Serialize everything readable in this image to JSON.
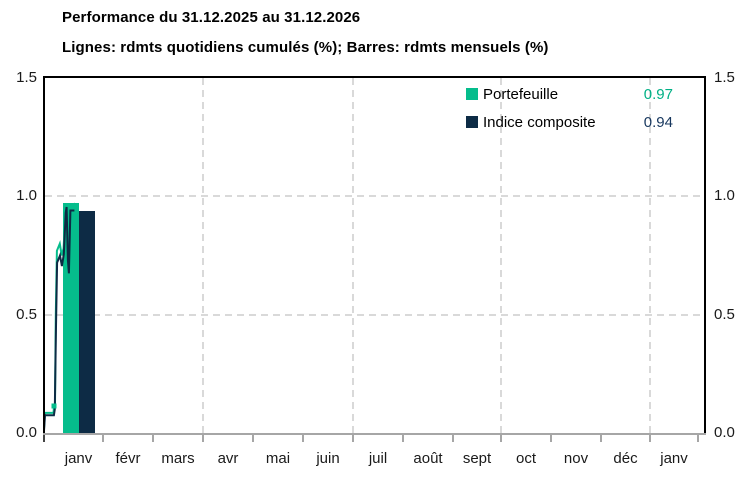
{
  "header": {
    "title": "Performance du 31.12.2025 au 31.12.2026",
    "subtitle": "Lignes: rdmts quotidiens cumulés (%); Barres: rdmts mensuels (%)"
  },
  "legend": {
    "items": [
      {
        "label": "Portefeuille",
        "value": "0.97",
        "color": "#05bd8c",
        "value_color": "#00b085"
      },
      {
        "label": "Indice composite",
        "value": "0.94",
        "color": "#0d2b45",
        "value_color": "#17375e"
      }
    ]
  },
  "colors": {
    "portfolio_green": "#05bd8c",
    "index_navy": "#0d2b45",
    "grid_gray": "#d9d9d9",
    "x_axis_gray": "#a6a6a6",
    "plot_border": "#000000"
  },
  "chart_data": {
    "type": "bar+line",
    "title": "Performance du 31.12.2025 au 31.12.2026",
    "subtitle": "Lignes: rdmts quotidiens cumulés (%); Barres: rdmts mensuels (%)",
    "categories": [
      "janv",
      "févr",
      "mars",
      "avr",
      "mai",
      "juin",
      "juil",
      "août",
      "sept",
      "oct",
      "nov",
      "déc",
      "janv"
    ],
    "bar_series": [
      {
        "name": "Portefeuille",
        "color": "#05bd8c",
        "values": [
          0.97,
          null,
          null,
          null,
          null,
          null,
          null,
          null,
          null,
          null,
          null,
          null,
          null
        ]
      },
      {
        "name": "Indice composite",
        "color": "#0d2b45",
        "values": [
          0.94,
          null,
          null,
          null,
          null,
          null,
          null,
          null,
          null,
          null,
          null,
          null,
          null
        ]
      }
    ],
    "line_series": [
      {
        "name": "Portefeuille",
        "color": "#05bd8c",
        "final_value": 0.97,
        "points_day_value": [
          [
            0,
            0.02
          ],
          [
            0.5,
            0.085
          ],
          [
            5,
            0.085
          ],
          [
            5.3,
            0.115
          ],
          [
            5.8,
            0.125
          ],
          [
            6.2,
            0.5
          ],
          [
            6.8,
            0.77
          ],
          [
            8.3,
            0.8
          ],
          [
            9.3,
            0.75
          ],
          [
            10.3,
            0.78
          ],
          [
            11.3,
            0.94
          ],
          [
            11.8,
            0.97
          ],
          [
            12.4,
            0.82
          ],
          [
            12.9,
            0.76
          ],
          [
            13.7,
            0.95
          ],
          [
            16.5,
            0.97
          ]
        ]
      },
      {
        "name": "Indice composite",
        "color": "#0d2b45",
        "final_value": 0.94,
        "points_day_value": [
          [
            0,
            0.01
          ],
          [
            0.5,
            0.075
          ],
          [
            5.2,
            0.075
          ],
          [
            5.7,
            0.1
          ],
          [
            6.3,
            0.45
          ],
          [
            6.9,
            0.72
          ],
          [
            8.4,
            0.75
          ],
          [
            9.4,
            0.705
          ],
          [
            10.4,
            0.755
          ],
          [
            11.4,
            0.93
          ],
          [
            11.9,
            0.955
          ],
          [
            12.6,
            0.73
          ],
          [
            13.1,
            0.675
          ],
          [
            13.9,
            0.94
          ],
          [
            16,
            0.94
          ]
        ]
      }
    ],
    "ylim": [
      0,
      1.5
    ],
    "yticks": [
      {
        "v": 0.0,
        "label": "0.0"
      },
      {
        "v": 0.5,
        "label": "0.5"
      },
      {
        "v": 1.0,
        "label": "1.0"
      },
      {
        "v": 1.5,
        "label": "1.5"
      }
    ],
    "grid": {
      "horizontal_dashed_at": [
        0.5,
        1.0
      ],
      "vertical_dashed_after_month_index": [
        3,
        6,
        9,
        12
      ]
    },
    "legend_position": "top-right",
    "y_axis_sides": "both"
  }
}
